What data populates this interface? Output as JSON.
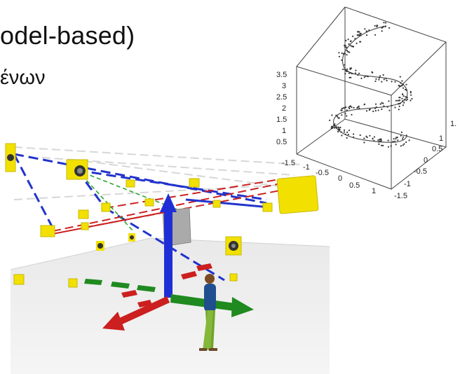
{
  "slide": {
    "title_fragment": "odel-based)",
    "subtitle_fragment": "ένων"
  },
  "plot3d": {
    "z_ticks": [
      "3.5",
      "3",
      "2.5",
      "2",
      "1.5",
      "1",
      "0.5"
    ],
    "x_ticks": [
      "-1.5",
      "-1",
      "-0.5",
      "0",
      "0.5",
      "1"
    ],
    "y_ticks": [
      "1.",
      "1",
      "0.5",
      "0",
      "-0.5",
      "-1",
      "-1.5"
    ]
  },
  "scene": {
    "axis_colors": {
      "x": "#cc1f1f",
      "y": "#1f8a1f",
      "z": "#1f2fd6"
    },
    "speaker_color": "#f2e000",
    "icons": [
      "speaker-icon",
      "person-figure"
    ]
  }
}
